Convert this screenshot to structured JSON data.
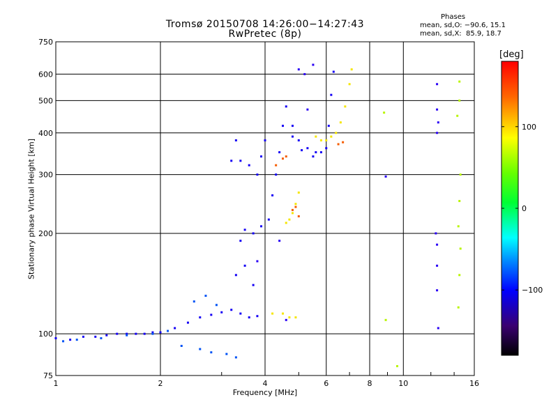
{
  "chart_data": {
    "type": "scatter",
    "title": "Tromsø 20150708 14:26:00−14:27:43",
    "subtitle": "RwPretec (8p)",
    "xlabel": "Frequency [MHz]",
    "ylabel": "Stationary phase Virtual Height [km]",
    "xscale": "log",
    "yscale": "log",
    "xlim": [
      1,
      16
    ],
    "ylim": [
      75,
      750
    ],
    "xticks": [
      1,
      2,
      4,
      6,
      8,
      10,
      16
    ],
    "xtick_labels": [
      "1",
      "2",
      "4",
      "6",
      "8",
      "10",
      "16"
    ],
    "yticks": [
      75,
      100,
      200,
      300,
      400,
      500,
      600,
      750
    ],
    "ytick_labels": [
      "75",
      "100",
      "200",
      "300",
      "400",
      "500",
      "600",
      "750"
    ],
    "grid": true,
    "colorbar": {
      "label": "[deg]",
      "range": [
        -180,
        180
      ],
      "ticks": [
        100,
        0,
        -100
      ],
      "tick_labels": [
        "100",
        "0",
        "−100"
      ]
    },
    "phases": {
      "header": "Phases",
      "o_line": "mean, sd,O: −90.6, 15.1",
      "x_line": "mean, sd,X:  85.9, 18.7"
    },
    "series": [
      {
        "phase": -100,
        "points": [
          [
            1.0,
            97
          ],
          [
            1.1,
            96
          ],
          [
            1.2,
            98
          ],
          [
            1.3,
            98
          ],
          [
            1.4,
            99
          ],
          [
            1.5,
            100
          ],
          [
            1.6,
            100
          ],
          [
            1.7,
            100
          ],
          [
            1.8,
            100
          ],
          [
            1.9,
            101
          ],
          [
            2.0,
            101
          ],
          [
            2.2,
            104
          ],
          [
            2.4,
            108
          ],
          [
            2.6,
            112
          ],
          [
            2.8,
            114
          ],
          [
            3.0,
            116
          ],
          [
            3.2,
            118
          ],
          [
            3.4,
            115
          ],
          [
            3.6,
            112
          ],
          [
            3.8,
            113
          ],
          [
            3.3,
            150
          ],
          [
            3.5,
            160
          ],
          [
            3.7,
            140
          ],
          [
            3.4,
            190
          ],
          [
            3.5,
            205
          ],
          [
            3.7,
            200
          ],
          [
            3.9,
            210
          ],
          [
            4.1,
            220
          ],
          [
            4.2,
            260
          ],
          [
            4.3,
            300
          ],
          [
            4.4,
            350
          ],
          [
            4.5,
            420
          ],
          [
            4.6,
            480
          ],
          [
            4.8,
            420
          ],
          [
            5.0,
            380
          ],
          [
            5.3,
            360
          ],
          [
            5.6,
            350
          ],
          [
            5.8,
            350
          ],
          [
            6.0,
            360
          ],
          [
            6.1,
            420
          ],
          [
            6.2,
            520
          ],
          [
            6.3,
            610
          ],
          [
            4.8,
            390
          ],
          [
            5.1,
            355
          ],
          [
            5.5,
            340
          ],
          [
            3.2,
            330
          ],
          [
            3.4,
            330
          ],
          [
            3.6,
            320
          ],
          [
            3.8,
            300
          ],
          [
            3.9,
            340
          ],
          [
            4.0,
            380
          ],
          [
            3.3,
            380
          ]
        ]
      },
      {
        "phase": -80,
        "points": [
          [
            2.5,
            125
          ],
          [
            2.7,
            130
          ],
          [
            2.9,
            122
          ],
          [
            2.3,
            92
          ],
          [
            2.6,
            90
          ],
          [
            2.8,
            88
          ],
          [
            3.3,
            85
          ],
          [
            3.1,
            87
          ],
          [
            1.05,
            95
          ],
          [
            1.15,
            96
          ],
          [
            1.35,
            97
          ],
          [
            1.6,
            99
          ],
          [
            1.9,
            100
          ],
          [
            2.1,
            102
          ]
        ]
      },
      {
        "phase": 85,
        "points": [
          [
            6.0,
            380
          ],
          [
            6.2,
            390
          ],
          [
            6.4,
            400
          ],
          [
            6.6,
            430
          ],
          [
            6.8,
            480
          ],
          [
            7.0,
            560
          ],
          [
            7.1,
            620
          ],
          [
            5.6,
            390
          ],
          [
            5.8,
            380
          ],
          [
            4.6,
            215
          ],
          [
            4.7,
            220
          ],
          [
            4.8,
            230
          ],
          [
            4.9,
            245
          ],
          [
            5.0,
            265
          ],
          [
            4.5,
            115
          ],
          [
            4.7,
            112
          ],
          [
            4.9,
            112
          ],
          [
            4.2,
            115
          ]
        ]
      },
      {
        "phase": 130,
        "points": [
          [
            4.8,
            235
          ],
          [
            4.9,
            240
          ],
          [
            5.0,
            225
          ],
          [
            4.3,
            320
          ],
          [
            4.5,
            335
          ],
          [
            4.6,
            340
          ],
          [
            6.5,
            370
          ],
          [
            6.7,
            375
          ]
        ]
      },
      {
        "phase": 60,
        "points": [
          [
            14.5,
            570
          ],
          [
            14.5,
            500
          ],
          [
            14.3,
            450
          ],
          [
            14.6,
            300
          ],
          [
            14.5,
            250
          ],
          [
            14.4,
            210
          ],
          [
            14.6,
            180
          ],
          [
            14.5,
            150
          ],
          [
            14.4,
            120
          ],
          [
            8.8,
            460
          ],
          [
            8.9,
            110
          ],
          [
            9.6,
            80
          ]
        ]
      },
      {
        "phase": -110,
        "points": [
          [
            12.5,
            560
          ],
          [
            12.5,
            470
          ],
          [
            12.6,
            430
          ],
          [
            12.5,
            400
          ],
          [
            12.4,
            200
          ],
          [
            12.5,
            185
          ],
          [
            12.5,
            160
          ],
          [
            12.5,
            135
          ],
          [
            12.6,
            104
          ],
          [
            8.9,
            296
          ],
          [
            5.0,
            620
          ],
          [
            5.2,
            600
          ],
          [
            5.5,
            640
          ],
          [
            5.3,
            470
          ],
          [
            4.4,
            190
          ],
          [
            3.8,
            165
          ],
          [
            4.6,
            110
          ]
        ]
      }
    ]
  }
}
